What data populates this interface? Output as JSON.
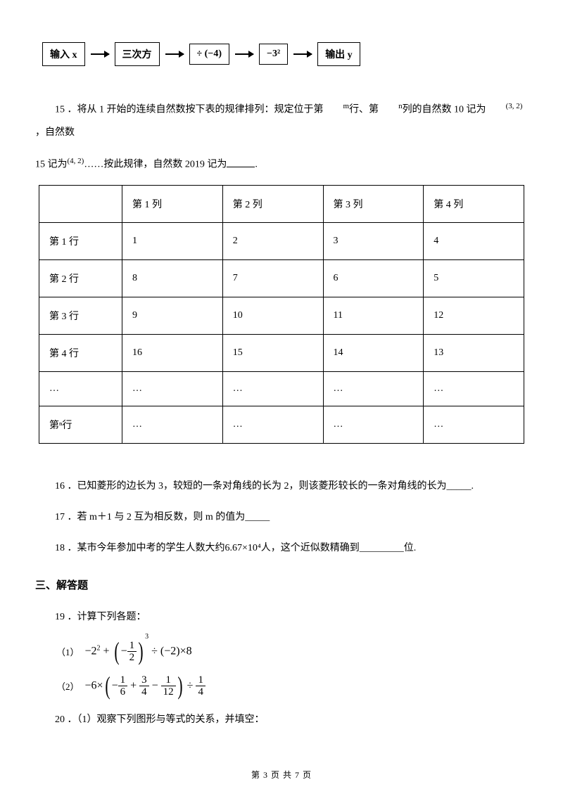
{
  "flowchart": {
    "boxes": [
      "输入 x",
      "三次方",
      "÷ (−4)",
      "−3²",
      "输出 y"
    ]
  },
  "q15": {
    "text_a": "15 ．将从 1 开始的连续自然数按下表的规律排列：规定位于第",
    "sup_m": "m",
    "text_b": "行、第",
    "sup_n": "n",
    "text_c": "列的自然数 10 记为",
    "paren1": "(3, 2)",
    "text_d": "，自然数",
    "text_e": "15 记为",
    "paren2": "(4, 2)",
    "text_f": "……按此规律，自然数 2019 记为",
    "text_g": "."
  },
  "table15": {
    "headers": [
      "",
      "第 1 列",
      "第 2 列",
      "第 3 列",
      "第 4 列"
    ],
    "rows": [
      [
        "第 1 行",
        "1",
        "2",
        "3",
        "4"
      ],
      [
        "第 2 行",
        "8",
        "7",
        "6",
        "5"
      ],
      [
        "第 3 行",
        "9",
        "10",
        "11",
        "12"
      ],
      [
        "第 4 行",
        "16",
        "15",
        "14",
        "13"
      ],
      [
        "…",
        "…",
        "…",
        "…",
        "…"
      ],
      [
        "第ⁿ行",
        "…",
        "…",
        "…",
        "…"
      ]
    ]
  },
  "q16": "16 ．已知菱形的边长为 3，较短的一条对角线的长为 2，则该菱形较长的一条对角线的长为_____.",
  "q17": "17 ．若 m＋1 与 2 互为相反数，则 m 的值为_____",
  "q18_a": "18 ．某市今年参加中考的学生人数大约",
  "q18_expr": "6.67×10⁴",
  "q18_b": "人，这个近似数精确到_________位.",
  "section3": "三、解答题",
  "q19": "19 ．计算下列各题：",
  "q19_1_label": "（1）",
  "q19_2_label": "（2）",
  "q20": "20 ．（1）观察下列图形与等式的关系，并填空：",
  "footer": "第 3 页 共 7 页",
  "colors": {
    "text": "#000000",
    "background": "#ffffff",
    "border": "#000000"
  }
}
